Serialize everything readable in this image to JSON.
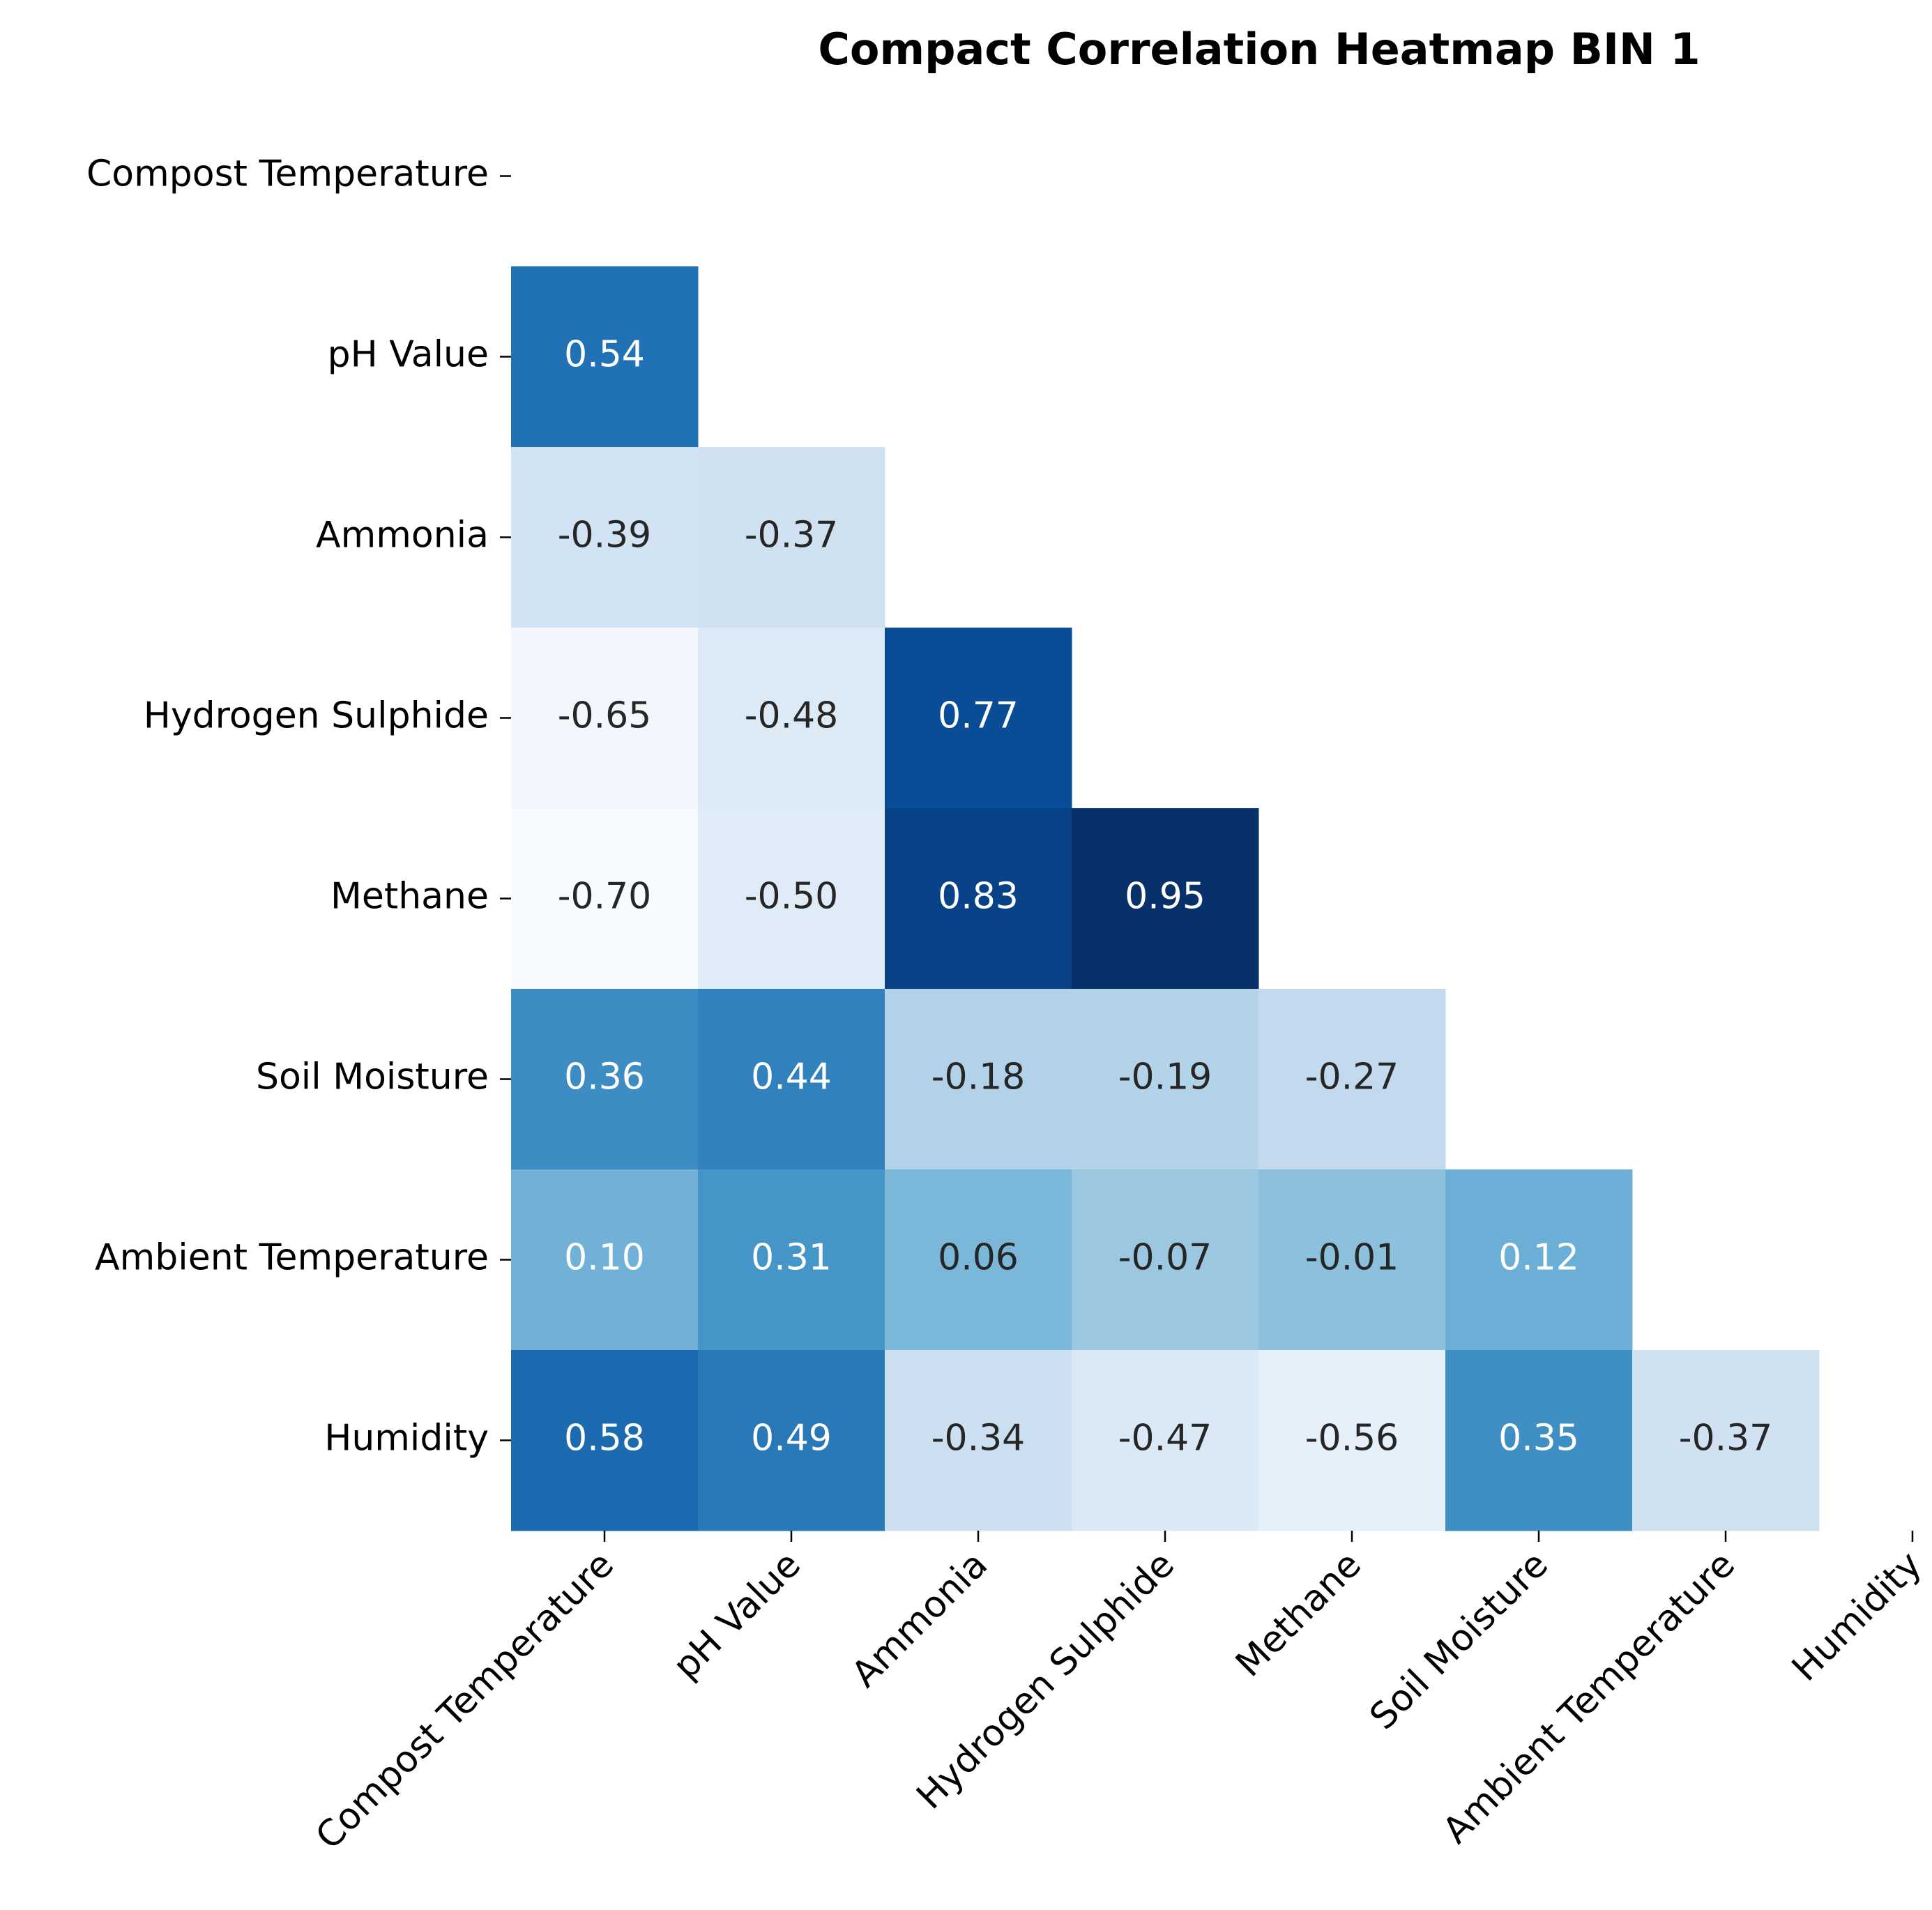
{
  "chart_data": {
    "type": "heatmap",
    "title": "Compact Correlation Heatmap BIN 1",
    "cmap": "Blues",
    "rows": [
      "Compost Temperature",
      "pH Value",
      "Ammonia",
      "Hydrogen Sulphide",
      "Methane",
      "Soil Moisture",
      "Ambient Temperature",
      "Humidity"
    ],
    "columns": [
      "Compost Temperature",
      "pH Value",
      "Ammonia",
      "Hydrogen Sulphide",
      "Methane",
      "Soil Moisture",
      "Ambient Temperature",
      "Humidity"
    ],
    "values": [
      [
        null,
        null,
        null,
        null,
        null,
        null,
        null,
        null
      ],
      [
        0.54,
        null,
        null,
        null,
        null,
        null,
        null,
        null
      ],
      [
        -0.39,
        -0.37,
        null,
        null,
        null,
        null,
        null,
        null
      ],
      [
        -0.65,
        -0.48,
        0.77,
        null,
        null,
        null,
        null,
        null
      ],
      [
        -0.7,
        -0.5,
        0.83,
        0.95,
        null,
        null,
        null,
        null
      ],
      [
        0.36,
        0.44,
        -0.18,
        -0.19,
        -0.27,
        null,
        null,
        null
      ],
      [
        0.1,
        0.31,
        0.06,
        -0.07,
        -0.01,
        0.12,
        null,
        null
      ],
      [
        0.58,
        0.49,
        -0.34,
        -0.47,
        -0.56,
        0.35,
        -0.37,
        null
      ]
    ],
    "value_labels": [
      [
        null,
        null,
        null,
        null,
        null,
        null,
        null,
        null
      ],
      [
        "0.54",
        null,
        null,
        null,
        null,
        null,
        null,
        null
      ],
      [
        "-0.39",
        "-0.37",
        null,
        null,
        null,
        null,
        null,
        null
      ],
      [
        "-0.65",
        "-0.48",
        "0.77",
        null,
        null,
        null,
        null,
        null
      ],
      [
        "-0.70",
        "-0.50",
        "0.83",
        "0.95",
        null,
        null,
        null,
        null
      ],
      [
        "0.36",
        "0.44",
        "-0.18",
        "-0.19",
        "-0.27",
        null,
        null,
        null
      ],
      [
        "0.10",
        "0.31",
        "0.06",
        "-0.07",
        "-0.01",
        "0.12",
        null,
        null
      ],
      [
        "0.58",
        "0.49",
        "-0.34",
        "-0.47",
        "-0.56",
        "0.35",
        "-0.37",
        null
      ]
    ]
  }
}
